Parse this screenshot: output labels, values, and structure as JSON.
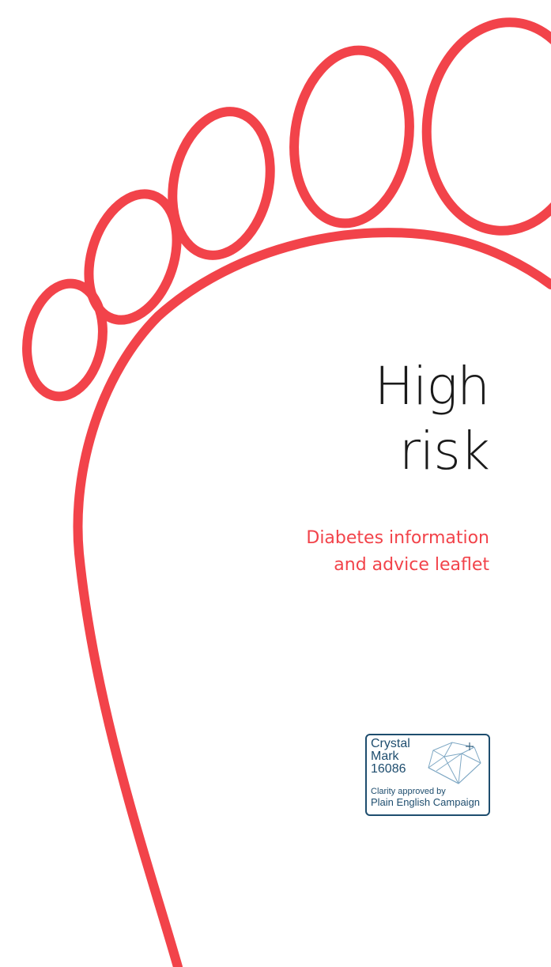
{
  "cover": {
    "title_line1": "High",
    "title_line2": "risk",
    "subtitle_line1": "Diabetes information",
    "subtitle_line2": "and advice leaflet"
  },
  "crystal_mark": {
    "line1": "Crystal",
    "line2": "Mark",
    "number": "16086",
    "clarity": "Clarity approved by",
    "campaign": "Plain English Campaign",
    "icon": "crystal-diamond-icon"
  },
  "colors": {
    "accent_red": "#f2434a",
    "badge_blue": "#1e4d6e",
    "title_text": "#1a1a1a"
  }
}
